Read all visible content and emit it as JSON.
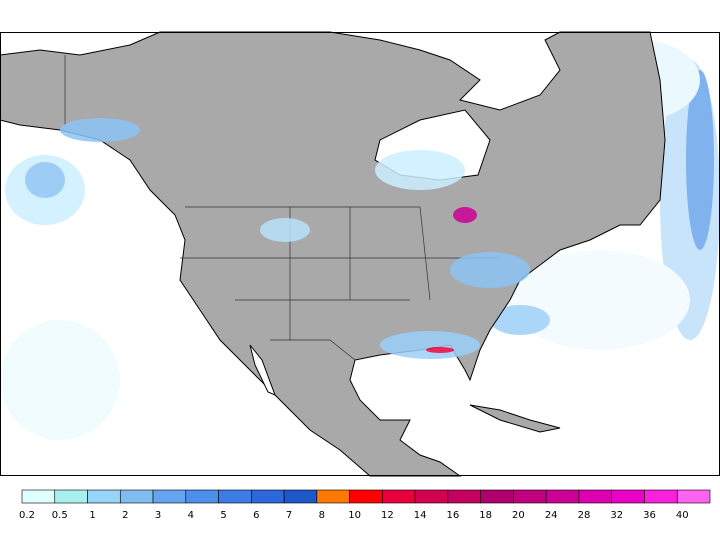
{
  "legend": {
    "labels": [
      "0.2",
      "0.5",
      "1",
      "2",
      "3",
      "4",
      "5",
      "6",
      "7",
      "8",
      "10",
      "12",
      "14",
      "16",
      "18",
      "20",
      "24",
      "28",
      "32",
      "36",
      "40"
    ],
    "colors": [
      "#e0ffff",
      "#a8f0f0",
      "#98d4f8",
      "#80bcf0",
      "#64a4f0",
      "#4c90ec",
      "#3c7ce4",
      "#2c68dc",
      "#1c58c8",
      "#ff7800",
      "#ff0000",
      "#e8003c",
      "#d40050",
      "#c40060",
      "#b0006c",
      "#c0007c",
      "#cc0096",
      "#dc00b0",
      "#ec00c8",
      "#fa20dc",
      "#ff64f0"
    ]
  }
}
